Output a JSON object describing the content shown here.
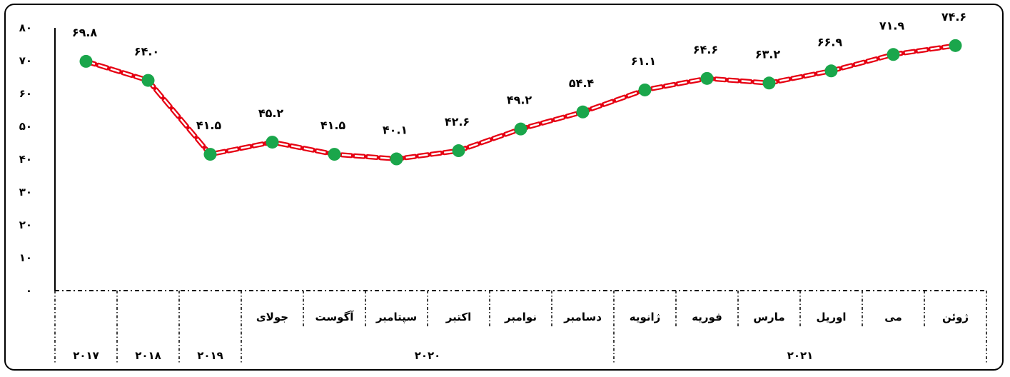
{
  "chart_data": {
    "type": "line",
    "ylim": [
      0,
      80
    ],
    "yticks": [
      "۰",
      "۱۰",
      "۲۰",
      "۳۰",
      "۴۰",
      "۵۰",
      "۶۰",
      "۷۰",
      "۸۰"
    ],
    "values": [
      69.8,
      64.0,
      41.5,
      45.2,
      41.5,
      40.1,
      42.6,
      49.2,
      54.4,
      61.1,
      64.6,
      63.2,
      66.9,
      71.9,
      74.6
    ],
    "data_labels": [
      "۶۹.۸",
      "۶۴.۰",
      "۴۱.۵",
      "۴۵.۲",
      "۴۱.۵",
      "۴۰.۱",
      "۴۲.۶",
      "۴۹.۲",
      "۵۴.۴",
      "۶۱.۱",
      "۶۴.۶",
      "۶۳.۲",
      "۶۶.۹",
      "۷۱.۹",
      "۷۴.۶"
    ],
    "months": [
      "",
      "",
      "",
      "جولای",
      "آگوست",
      "سپتامبر",
      "اکتبر",
      "نوامبر",
      "دسامبر",
      "ژانویه",
      "فوریه",
      "مارس",
      "اوریل",
      "می",
      "ژوئن"
    ],
    "years": [
      {
        "label": "۲۰۱۷",
        "start": 0,
        "span": 1
      },
      {
        "label": "۲۰۱۸",
        "start": 1,
        "span": 1
      },
      {
        "label": "۲۰۱۹",
        "start": 2,
        "span": 1
      },
      {
        "label": "۲۰۲۰",
        "start": 3,
        "span": 6
      },
      {
        "label": "۲۰۲۱",
        "start": 9,
        "span": 6
      }
    ],
    "colors": {
      "line": "#e60012",
      "marker": "#1aa64b",
      "axis": "#000000"
    },
    "grid": false,
    "legend": "none"
  }
}
